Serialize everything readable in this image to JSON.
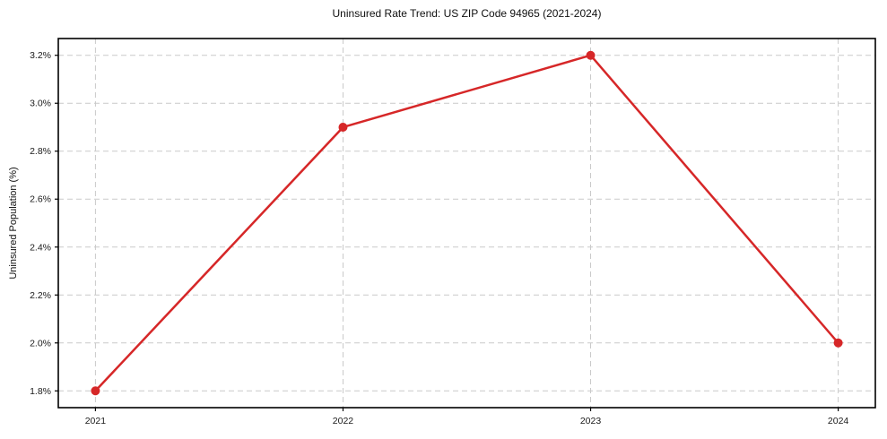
{
  "chart_data": {
    "type": "line",
    "title": "Uninsured Rate Trend: US ZIP Code 94965 (2021-2024)",
    "xlabel": "",
    "ylabel": "Uninsured Population (%)",
    "x": [
      2021,
      2022,
      2023,
      2024
    ],
    "x_tick_labels": [
      "2021",
      "2022",
      "2023",
      "2024"
    ],
    "series": [
      {
        "name": "uninsured-rate",
        "values": [
          1.8,
          2.9,
          3.2,
          2.0
        ],
        "color": "#d62728",
        "line_width": 2.5,
        "marker": "circle",
        "marker_radius": 5
      }
    ],
    "yticks": [
      1.8,
      2.0,
      2.2,
      2.4,
      2.6,
      2.8,
      3.0,
      3.2
    ],
    "ytick_labels": [
      "1.8%",
      "2.0%",
      "2.2%",
      "2.4%",
      "2.6%",
      "2.8%",
      "3.0%",
      "3.2%"
    ],
    "xlim": [
      2020.85,
      2024.15
    ],
    "ylim": [
      1.73,
      3.27
    ],
    "grid": true,
    "grid_style": "dashed",
    "legend": "none",
    "colors": {
      "background": "#ffffff",
      "grid": "#c9c9c9",
      "axis_border": "#000000",
      "tick_text": "#1a1a1a",
      "title_text": "#111111"
    }
  }
}
